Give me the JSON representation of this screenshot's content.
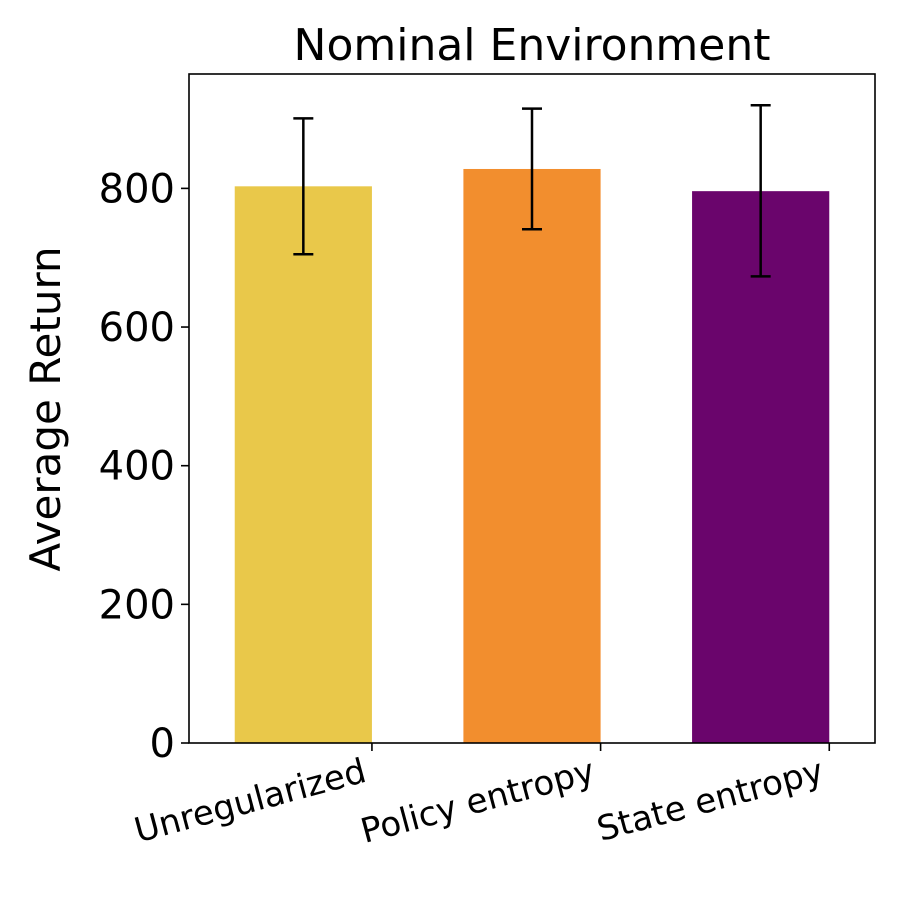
{
  "chart_data": {
    "type": "bar",
    "title": "Nominal Environment",
    "xlabel": "",
    "ylabel": "Average Return",
    "categories": [
      "Unregularized",
      "Policy entropy",
      "State entropy"
    ],
    "values": [
      803,
      828,
      796
    ],
    "error_low": [
      705,
      741,
      673
    ],
    "error_high": [
      901,
      915,
      920
    ],
    "colors": [
      "#E9C84A",
      "#F28E2E",
      "#6A056C"
    ],
    "ylim": [
      0,
      965
    ],
    "yticks": [
      "0",
      "200",
      "400",
      "600",
      "800"
    ],
    "ytick_values": [
      0,
      200,
      400,
      600,
      800
    ],
    "grid": false,
    "legend": "none"
  }
}
